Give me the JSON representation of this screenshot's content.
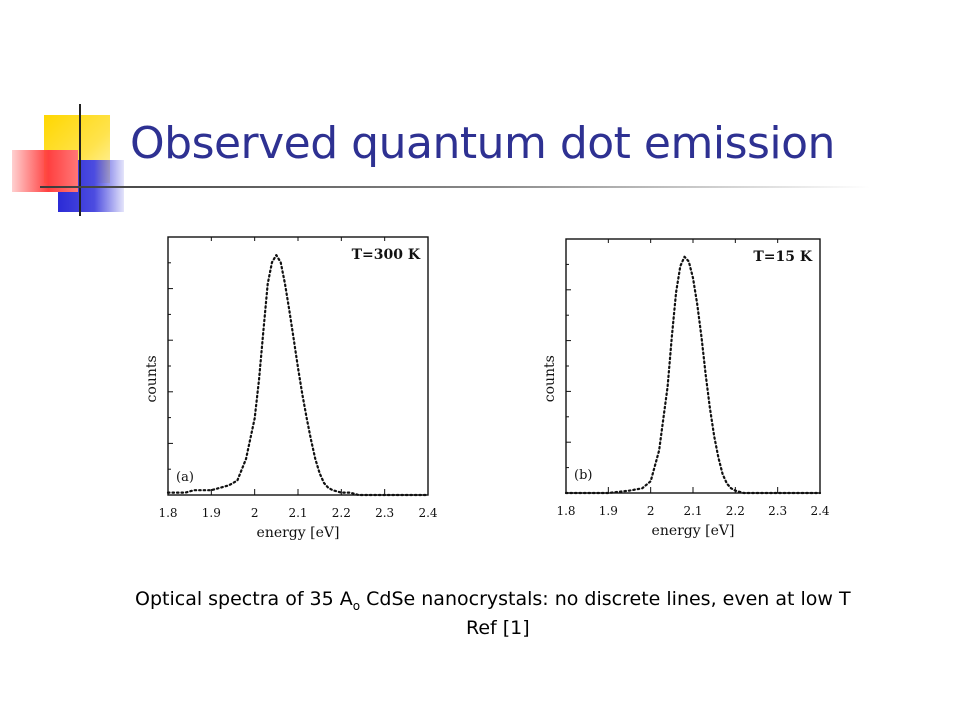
{
  "slide": {
    "title": "Observed quantum dot emission",
    "caption_part1": "Optical spectra of 35 A",
    "caption_sub": "o",
    "caption_part2": " CdSe nanocrystals: no discrete lines, even at low T",
    "caption_ref": "Ref [1]",
    "colors": {
      "title": "#2e3192",
      "deco_yellow": "#ffd700",
      "deco_blue": "#3333cc",
      "deco_red": "#ff3b3b"
    }
  },
  "chart_data": [
    {
      "type": "line",
      "panel_label": "(a)",
      "annotation": "T=300 K",
      "xlabel": "energy [eV]",
      "ylabel": "counts",
      "xlim": [
        1.8,
        2.4
      ],
      "ylim": [
        0,
        1
      ],
      "x_ticks": [
        1.8,
        1.9,
        2.0,
        2.1,
        2.2,
        2.3,
        2.4
      ],
      "x_tick_labels": [
        "1.8",
        "1.9",
        "2",
        "2.1",
        "2.2",
        "2.3",
        "2.4"
      ],
      "series": [
        {
          "x": [
            1.8,
            1.82,
            1.84,
            1.86,
            1.88,
            1.9,
            1.92,
            1.94,
            1.96,
            1.98,
            2.0,
            2.01,
            2.02,
            2.03,
            2.04,
            2.05,
            2.06,
            2.07,
            2.08,
            2.09,
            2.1,
            2.11,
            2.12,
            2.13,
            2.14,
            2.15,
            2.16,
            2.17,
            2.18,
            2.2,
            2.22,
            2.24,
            2.26,
            2.28,
            2.3,
            2.35,
            2.4
          ],
          "y": [
            0.01,
            0.01,
            0.01,
            0.02,
            0.02,
            0.02,
            0.03,
            0.04,
            0.06,
            0.15,
            0.32,
            0.48,
            0.68,
            0.88,
            0.97,
            1.0,
            0.97,
            0.88,
            0.77,
            0.65,
            0.53,
            0.42,
            0.32,
            0.23,
            0.15,
            0.09,
            0.05,
            0.03,
            0.02,
            0.01,
            0.01,
            0.0,
            0.0,
            0.0,
            0.0,
            0.0,
            0.0
          ]
        }
      ]
    },
    {
      "type": "line",
      "panel_label": "(b)",
      "annotation": "T=15 K",
      "xlabel": "energy [eV]",
      "ylabel": "counts",
      "xlim": [
        1.8,
        2.4
      ],
      "ylim": [
        0,
        1
      ],
      "x_ticks": [
        1.8,
        1.9,
        2.0,
        2.1,
        2.2,
        2.3,
        2.4
      ],
      "x_tick_labels": [
        "1.8",
        "1.9",
        "2",
        "2.1",
        "2.2",
        "2.3",
        "2.4"
      ],
      "series": [
        {
          "x": [
            1.8,
            1.85,
            1.9,
            1.95,
            1.98,
            2.0,
            2.02,
            2.04,
            2.05,
            2.06,
            2.07,
            2.08,
            2.09,
            2.1,
            2.11,
            2.12,
            2.13,
            2.14,
            2.15,
            2.16,
            2.17,
            2.18,
            2.19,
            2.2,
            2.22,
            2.25,
            2.3,
            2.35,
            2.4
          ],
          "y": [
            0.0,
            0.0,
            0.0,
            0.01,
            0.02,
            0.05,
            0.18,
            0.45,
            0.66,
            0.85,
            0.96,
            1.0,
            0.98,
            0.91,
            0.8,
            0.66,
            0.5,
            0.36,
            0.24,
            0.15,
            0.08,
            0.04,
            0.02,
            0.01,
            0.0,
            0.0,
            0.0,
            0.0,
            0.0
          ]
        }
      ]
    }
  ]
}
